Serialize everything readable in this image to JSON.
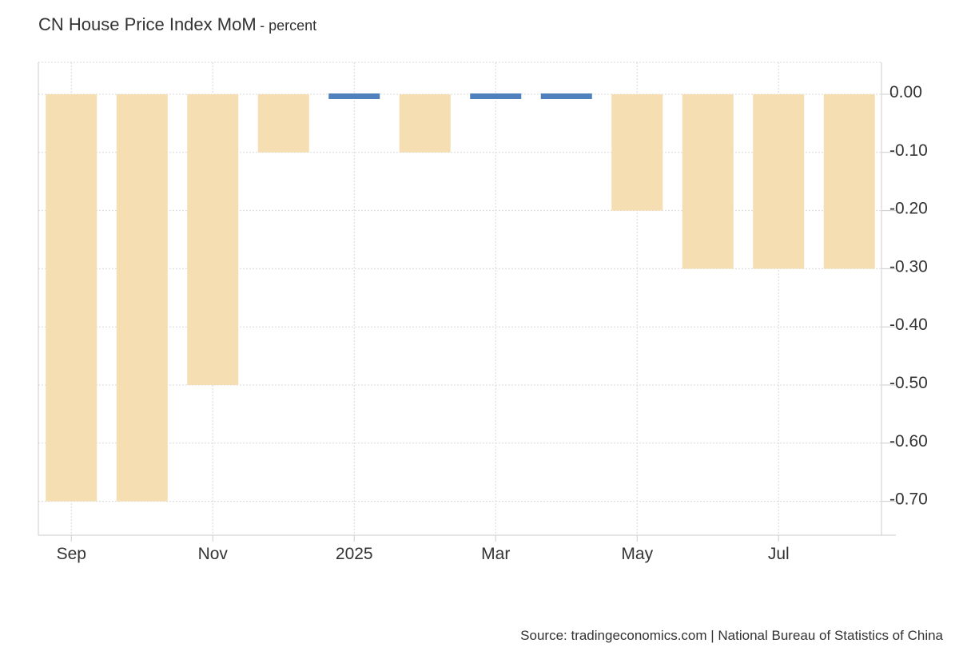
{
  "title": "CN House Price Index MoM",
  "subtitle": "- percent",
  "source": "Source: tradingeconomics.com | National Bureau of Statistics of China",
  "colors": {
    "negative_bar": "#f4deb2",
    "zero_bar": "#4f81bd",
    "grid": "#d9d9d9",
    "axis": "#cccccc"
  },
  "chart_data": {
    "type": "bar",
    "title": "CN House Price Index MoM",
    "ylabel": "",
    "xlabel": "",
    "ylim": [
      -0.75,
      0.05
    ],
    "grid": true,
    "y_axis_side": "right",
    "categories": [
      "Sep 2024",
      "Oct 2024",
      "Nov 2024",
      "Dec 2024",
      "Jan 2025",
      "Feb 2025",
      "Mar 2025",
      "Apr 2025",
      "May 2025",
      "Jun 2025",
      "Jul 2025",
      "Aug 2025"
    ],
    "values": [
      -0.7,
      -0.7,
      -0.5,
      -0.1,
      0.0,
      -0.1,
      0.0,
      0.0,
      -0.2,
      -0.3,
      -0.3,
      -0.3
    ],
    "x_tick_labels": [
      "Sep",
      "Nov",
      "2025",
      "Mar",
      "May",
      "Jul"
    ],
    "x_tick_category_index": [
      0,
      2,
      4,
      6,
      8,
      10
    ],
    "y_ticks": [
      0.0,
      -0.1,
      -0.2,
      -0.3,
      -0.4,
      -0.5,
      -0.6,
      -0.7
    ],
    "y_tick_labels": [
      "0.00",
      "-0.10",
      "-0.20",
      "-0.30",
      "-0.40",
      "-0.50",
      "-0.60",
      "-0.70"
    ]
  }
}
